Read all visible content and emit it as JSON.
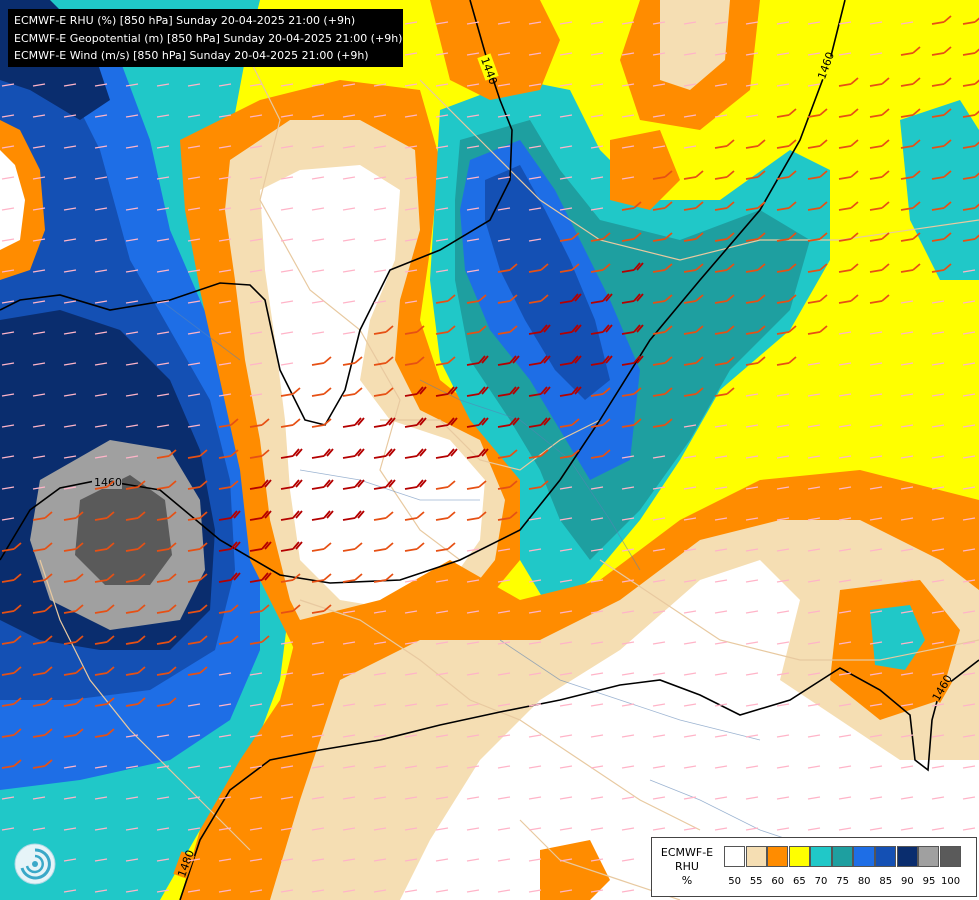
{
  "title_lines": [
    "ECMWF-E RHU (%) [850 hPa] Sunday 20-04-2025 21:00 (+9h)",
    "ECMWF-E Geopotential (m) [850 hPa] Sunday 20-04-2025 21:00 (+9h)",
    "ECMWF-E Wind (m/s) [850 hPa] Sunday 20-04-2025 21:00 (+9h)"
  ],
  "legend": {
    "label_lines": [
      "ECMWF-E",
      "RHU",
      "%"
    ],
    "ticks": [
      "50",
      "55",
      "60",
      "65",
      "70",
      "75",
      "80",
      "85",
      "90",
      "95",
      "100"
    ],
    "colors": [
      "#ffffff",
      "#f5deb3",
      "#ff8c00",
      "#ffff00",
      "#20c8c8",
      "#1e9fa0",
      "#1e6ee6",
      "#1450b4",
      "#0a2d6e",
      "#a0a0a0",
      "#5a5a5a"
    ]
  },
  "contour_labels": [
    "1440",
    "1460",
    "1460",
    "1480",
    "1460"
  ],
  "map_colors": {
    "rhu_50": "#ffffff",
    "rhu_55": "#f5deb3",
    "rhu_60": "#ff8c00",
    "rhu_65": "#ffff00",
    "rhu_70": "#20c8c8",
    "rhu_75": "#1e9fa0",
    "rhu_80": "#1e6ee6",
    "rhu_85": "#1450b4",
    "rhu_90": "#0a2d6e",
    "rhu_95": "#a0a0a0",
    "rhu_100": "#5a5a5a",
    "contour": "#000000",
    "wind_strong": "#b40000",
    "wind_moderate": "#e65014",
    "wind_light": "#ffb4c8"
  }
}
